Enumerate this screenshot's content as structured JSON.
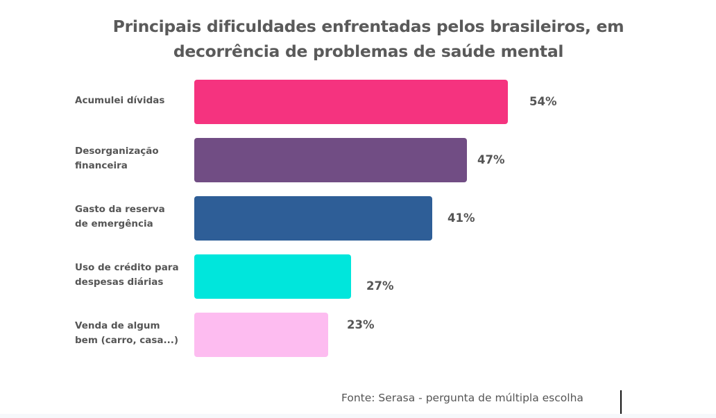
{
  "chart_data": {
    "type": "bar",
    "orientation": "horizontal",
    "title": "Principais dificuldades enfrentadas pelos brasileiros, em decorrência de problemas de saúde mental",
    "title_lines": [
      "Principais dificuldades enfrentadas pelos brasileiros, em",
      "decorrência de problemas de saúde mental"
    ],
    "categories": [
      [
        "Acumulei dívidas"
      ],
      [
        "Desorganização",
        "financeira"
      ],
      [
        "Gasto da reserva",
        "de emergência"
      ],
      [
        "Uso de crédito para",
        "despesas diárias"
      ],
      [
        "Venda de algum",
        "bem (carro, casa...)"
      ]
    ],
    "values": [
      54,
      47,
      41,
      27,
      23
    ],
    "value_labels": [
      "54%",
      "47%",
      "41%",
      "27%",
      "23%"
    ],
    "unit": "%",
    "colors": [
      "#f5337f",
      "#714d84",
      "#2e5e97",
      "#00e6dc",
      "#fdbcf0"
    ],
    "xlabel": "",
    "ylabel": "",
    "xlim": [
      0,
      54
    ],
    "grid": false,
    "legend": "none",
    "source": "Fonte: Serasa - pergunta de múltipla escolha"
  }
}
